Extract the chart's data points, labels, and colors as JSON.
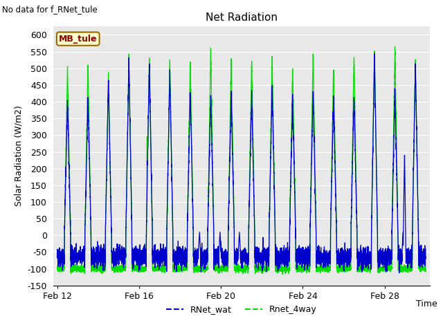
{
  "title": "Net Radiation",
  "subtitle": "No data for f_RNet_tule",
  "ylabel": "Solar Radiation (W/m2)",
  "xlabel": "Time",
  "legend_label1": "RNet_wat",
  "legend_label2": "Rnet_4way",
  "legend_box_label": "MB_tule",
  "ylim": [
    -150,
    625
  ],
  "yticks": [
    -150,
    -100,
    -50,
    0,
    50,
    100,
    150,
    200,
    250,
    300,
    350,
    400,
    450,
    500,
    550,
    600
  ],
  "xtick_labels": [
    "Feb 12",
    "Feb 16",
    "Feb 20",
    "Feb 24",
    "Feb 28"
  ],
  "xtick_positions": [
    0,
    4,
    8,
    12,
    16
  ],
  "color_blue": "#0000cc",
  "color_green": "#00dd00",
  "bg_plot": "#e8e8e8",
  "bg_fig": "#ffffff",
  "n_days": 18,
  "seed": 42
}
